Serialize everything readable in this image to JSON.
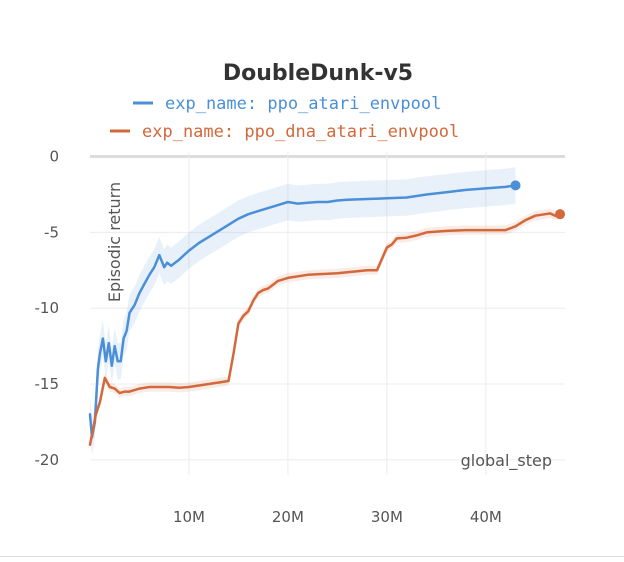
{
  "chart_data": {
    "type": "line",
    "title": "DoubleDunk-v5",
    "xlabel": "global_step",
    "ylabel": "Episodic return",
    "xlim": [
      0,
      48000000
    ],
    "ylim": [
      -21,
      0.3
    ],
    "xticks": [
      10000000,
      20000000,
      30000000,
      40000000
    ],
    "xtick_labels": [
      "10M",
      "20M",
      "30M",
      "40M"
    ],
    "yticks": [
      0,
      -5,
      -10,
      -15,
      -20
    ],
    "ytick_labels": [
      "0",
      "-5",
      "-10",
      "-15",
      "-20"
    ],
    "grid": true,
    "legend_position": "top",
    "series": [
      {
        "name": "exp_name: ppo_atari_envpool",
        "color": "#4a8fd8",
        "band": 1.2,
        "x": [
          0,
          200000,
          500000,
          800000,
          1000000,
          1300000,
          1600000,
          1900000,
          2200000,
          2500000,
          2800000,
          3100000,
          3400000,
          3700000,
          4000000,
          4500000,
          5000000,
          5500000,
          6000000,
          6500000,
          7000000,
          7500000,
          7800000,
          8200000,
          8600000,
          9000000,
          9500000,
          10000000,
          11000000,
          12000000,
          13000000,
          14000000,
          15000000,
          16000000,
          17000000,
          18000000,
          19000000,
          20000000,
          21000000,
          22000000,
          23000000,
          24000000,
          25000000,
          26000000,
          28000000,
          30000000,
          32000000,
          34000000,
          36000000,
          38000000,
          40000000,
          42000000,
          43000000
        ],
        "y": [
          -17,
          -18.5,
          -17.5,
          -14,
          -13,
          -12,
          -13.5,
          -12.3,
          -13.8,
          -12.5,
          -13.5,
          -13.5,
          -12,
          -11.5,
          -10.3,
          -9.8,
          -9,
          -8.4,
          -7.8,
          -7.3,
          -6.5,
          -7.3,
          -7,
          -7.2,
          -7,
          -6.8,
          -6.5,
          -6.2,
          -5.7,
          -5.3,
          -4.9,
          -4.5,
          -4.1,
          -3.8,
          -3.6,
          -3.4,
          -3.2,
          -3,
          -3.1,
          -3.05,
          -3,
          -3,
          -2.9,
          -2.85,
          -2.8,
          -2.75,
          -2.7,
          -2.5,
          -2.35,
          -2.2,
          -2.1,
          -2,
          -1.9
        ]
      },
      {
        "name": "exp_name: ppo_dna_atari_envpool",
        "color": "#d3683a",
        "band": 0.3,
        "x": [
          0,
          300000,
          600000,
          1000000,
          1500000,
          2000000,
          2500000,
          3000000,
          3500000,
          4000000,
          5000000,
          6000000,
          8000000,
          9000000,
          10000000,
          12000000,
          14000000,
          14500000,
          15000000,
          15500000,
          16000000,
          16500000,
          17000000,
          17500000,
          18000000,
          19000000,
          20000000,
          22000000,
          25000000,
          28000000,
          29000000,
          30000000,
          30500000,
          31000000,
          32000000,
          33000000,
          34000000,
          36000000,
          38000000,
          40000000,
          42000000,
          43000000,
          44000000,
          45000000,
          46000000,
          46500000,
          47000000,
          47500000
        ],
        "y": [
          -19,
          -18,
          -17,
          -16.2,
          -14.6,
          -15.2,
          -15.3,
          -15.6,
          -15.5,
          -15.5,
          -15.3,
          -15.2,
          -15.2,
          -15.25,
          -15.2,
          -15,
          -14.8,
          -13,
          -11,
          -10.5,
          -10.2,
          -9.5,
          -9,
          -8.8,
          -8.7,
          -8.2,
          -8,
          -7.8,
          -7.7,
          -7.5,
          -7.5,
          -6,
          -5.8,
          -5.4,
          -5.35,
          -5.2,
          -5,
          -4.9,
          -4.85,
          -4.85,
          -4.85,
          -4.6,
          -4.2,
          -3.9,
          -3.8,
          -3.75,
          -3.9,
          -3.8
        ]
      }
    ]
  }
}
